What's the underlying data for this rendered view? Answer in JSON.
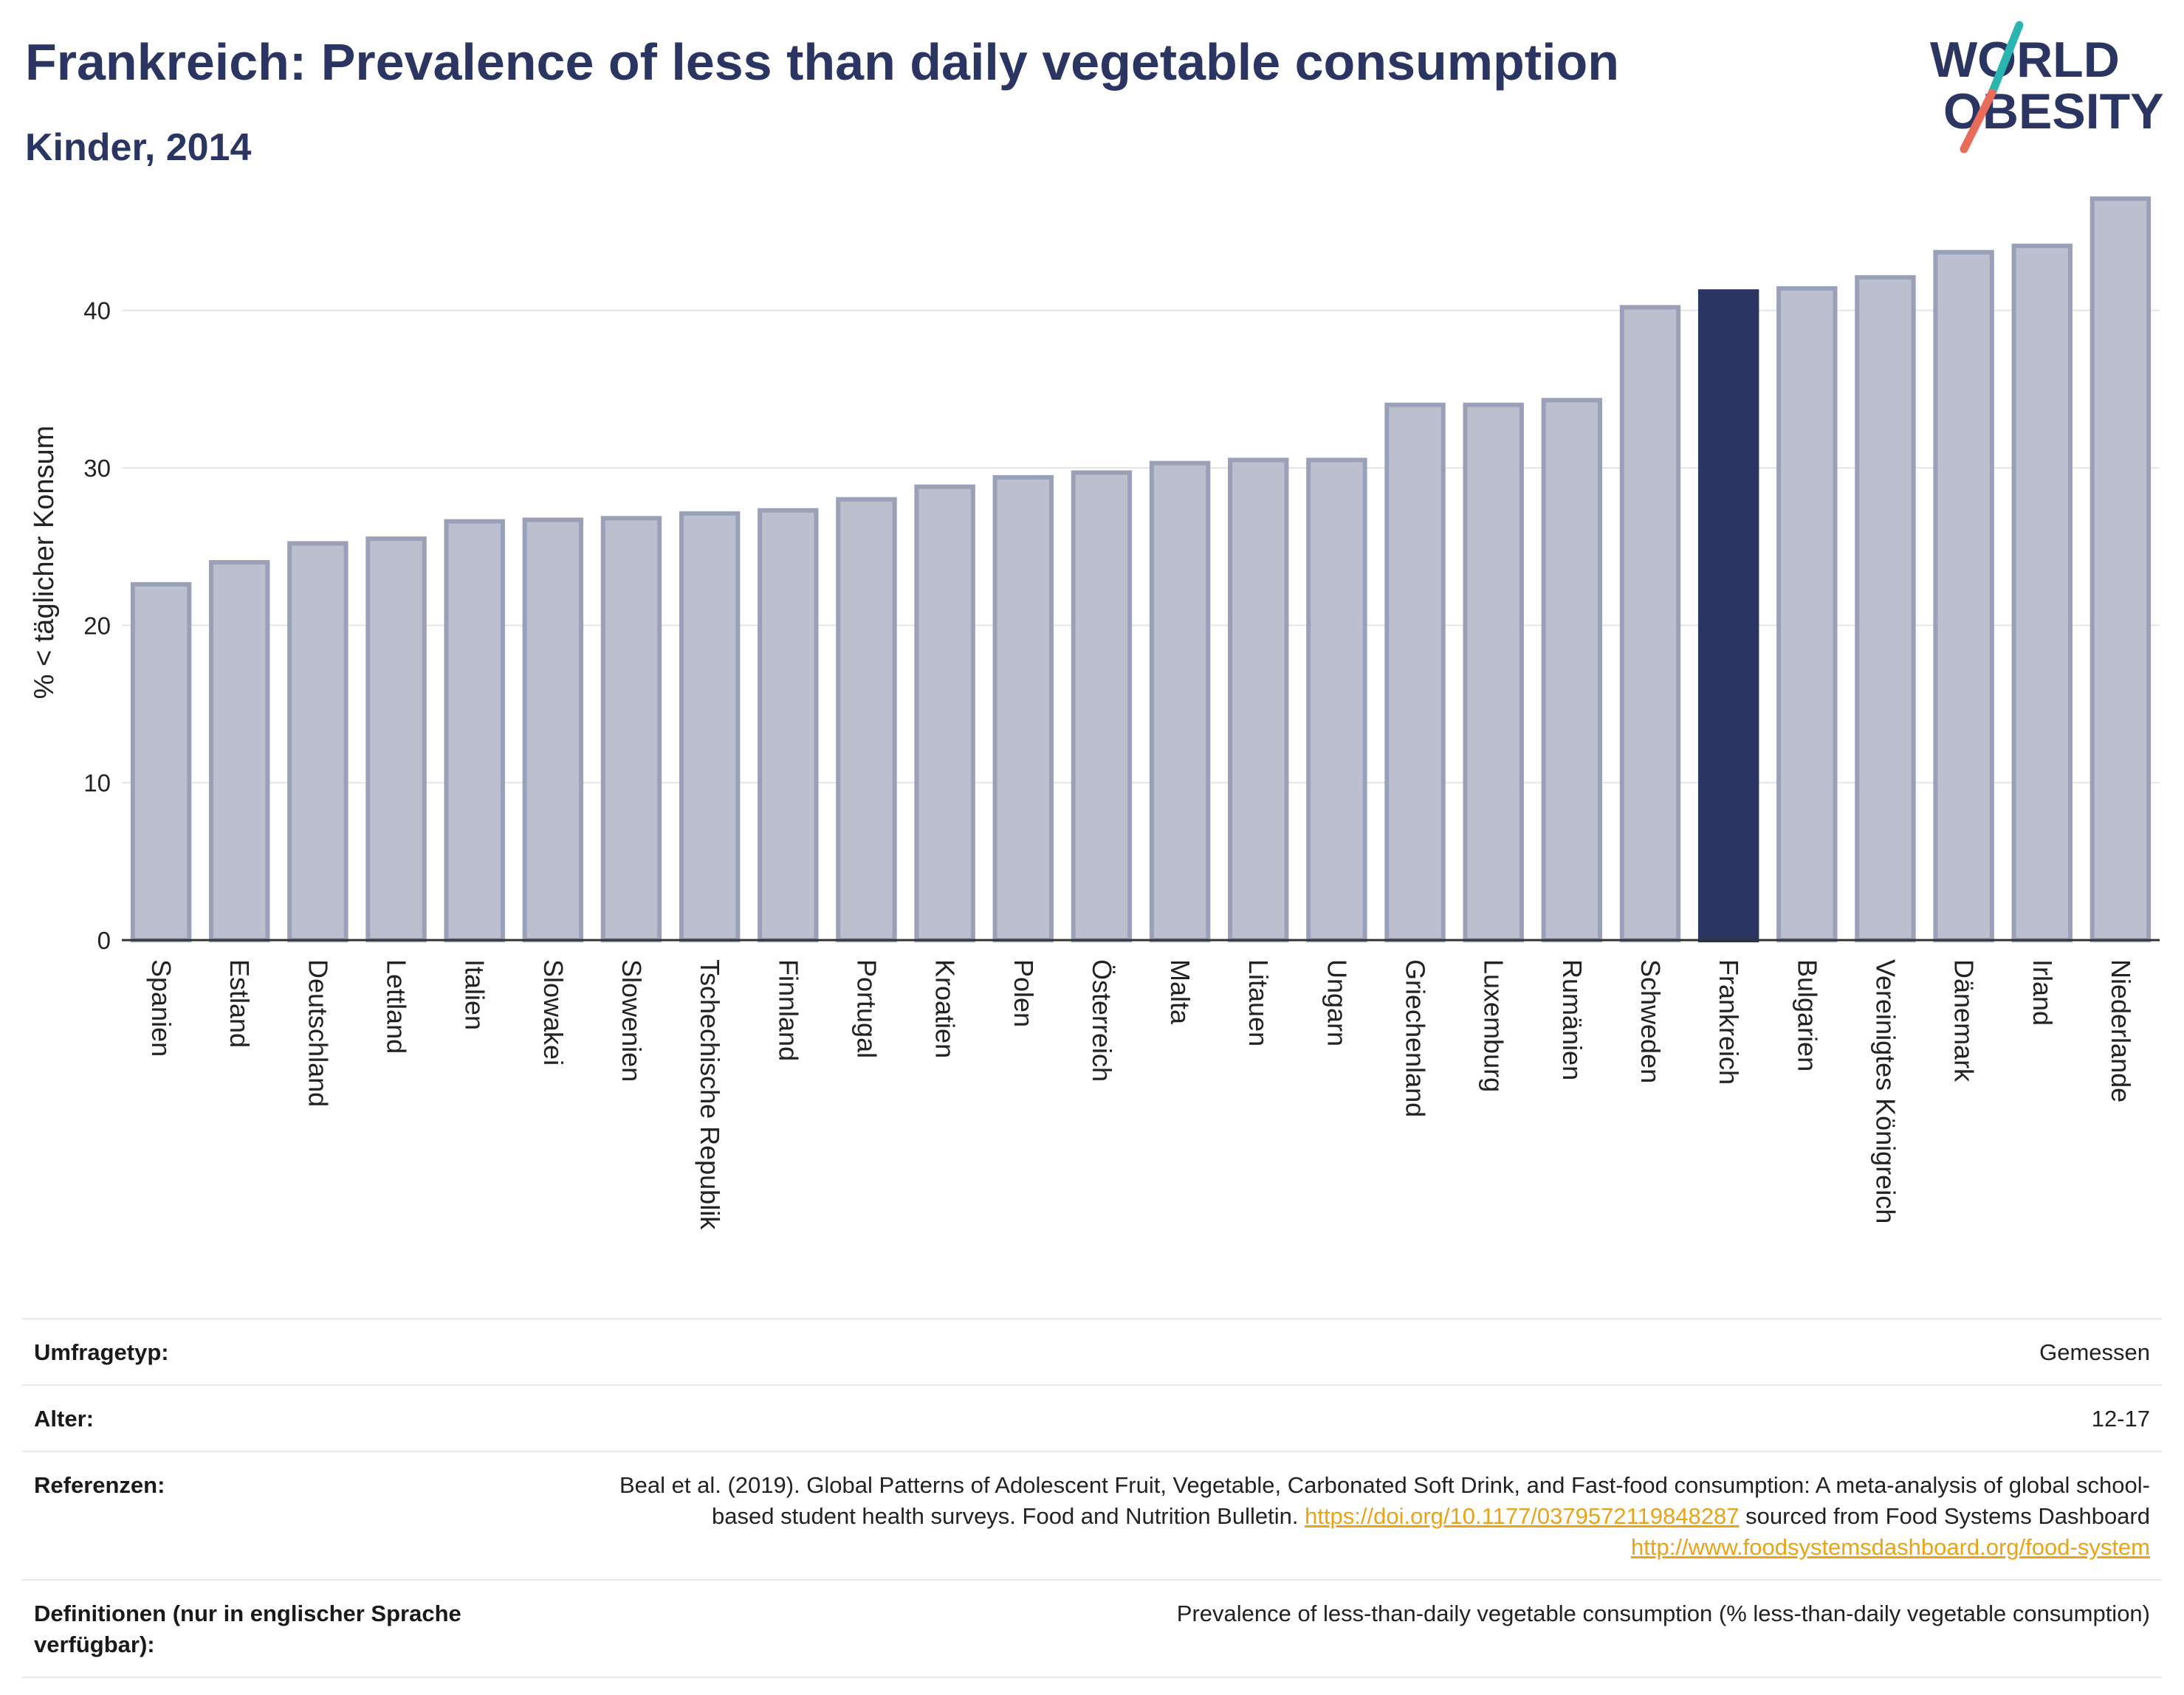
{
  "header": {
    "title": "Frankreich: Prevalence of less than daily vegetable consumption",
    "subtitle": "Kinder, 2014"
  },
  "logo": {
    "line1": "WORLD",
    "line2": "OBESITY",
    "colors": {
      "text": "#2a3561",
      "slash_top": "#2bb5b0",
      "slash_bottom": "#e96c5b"
    }
  },
  "colors": {
    "bar_default_fill": "#bcc0ce",
    "bar_default_stroke": "#9aa0b8",
    "bar_highlight": "#2a3561",
    "grid": "#e3e5ea"
  },
  "chart_data": {
    "type": "bar",
    "title": "Frankreich: Prevalence of less than daily vegetable consumption",
    "subtitle": "Kinder, 2014",
    "xlabel": "",
    "ylabel": "% < täglicher Konsum",
    "ylim": [
      0,
      48
    ],
    "yticks": [
      0,
      10,
      20,
      30,
      40
    ],
    "grid": true,
    "highlight": "Frankreich",
    "categories": [
      "Spanien",
      "Estland",
      "Deutschland",
      "Lettland",
      "Italien",
      "Slowakei",
      "Slowenien",
      "Tschechische Republik",
      "Finnland",
      "Portugal",
      "Kroatien",
      "Polen",
      "Österreich",
      "Malta",
      "Litauen",
      "Ungarn",
      "Griechenland",
      "Luxemburg",
      "Rumänien",
      "Schweden",
      "Frankreich",
      "Bulgarien",
      "Vereinigtes Königreich",
      "Dänemark",
      "Irland",
      "Niederlande"
    ],
    "values": [
      22.6,
      24.0,
      25.2,
      25.5,
      26.6,
      26.7,
      26.8,
      27.1,
      27.3,
      28.0,
      28.8,
      29.4,
      29.7,
      30.3,
      30.5,
      30.5,
      34.0,
      34.0,
      34.3,
      40.2,
      41.2,
      41.4,
      42.1,
      43.7,
      44.1,
      47.1
    ]
  },
  "meta": {
    "rows": [
      {
        "label": "Umfragetyp:",
        "value": "Gemessen"
      },
      {
        "label": "Alter:",
        "value": "12-17"
      },
      {
        "label": "Referenzen:",
        "text1": "Beal et al. (2019). Global Patterns of Adolescent Fruit, Vegetable, Carbonated Soft Drink, and Fast-food consumption: A meta-analysis of global school-based student health surveys. Food and Nutrition Bulletin. ",
        "link1": "https://doi.org/10.1177/0379572119848287",
        "text2": " sourced from Food Systems Dashboard ",
        "link2": "http://www.foodsystemsdashboard.org/food-system"
      },
      {
        "label": "Definitionen (nur in englischer Sprache verfügbar):",
        "value": "Prevalence of less-than-daily vegetable consumption (% less-than-daily vegetable consumption)"
      }
    ]
  }
}
